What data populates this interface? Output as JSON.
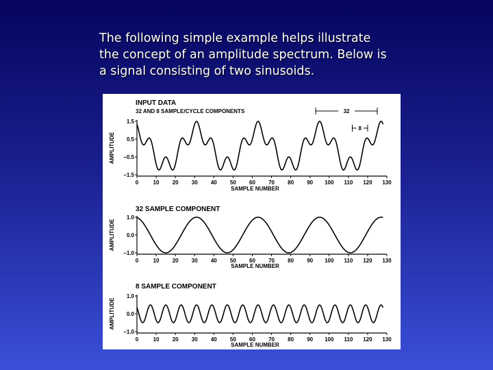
{
  "slide": {
    "caption_lines": [
      "The following simple example helps illustrate",
      "the concept of an amplitude spectrum. Below is",
      "a signal consisting of two sinusoids."
    ]
  },
  "chart_data": [
    {
      "type": "line",
      "title": "INPUT DATA",
      "subtitle": "32 AND 8 SAMPLE/CYCLE COMPONENTS",
      "xlabel": "SAMPLE NUMBER",
      "ylabel": "AMPLITUDE",
      "xlim": [
        0,
        130
      ],
      "ylim": [
        -1.5,
        1.5
      ],
      "x_ticks": [
        "0",
        "10",
        "20",
        "30",
        "40",
        "50",
        "60",
        "70",
        "80",
        "90",
        "100",
        "110",
        "120",
        "130"
      ],
      "y_ticks": [
        "1.5",
        "0.5",
        "−0.5",
        "−1.5"
      ],
      "y_tick_values": [
        1.5,
        0.5,
        -0.5,
        -1.5
      ],
      "series": [
        {
          "components": [
            {
              "period": 32,
              "amplitude": 1.0,
              "phase_peak": 31
            },
            {
              "period": 8,
              "amplitude": 0.5,
              "phase_peak": 31
            }
          ],
          "x_range": [
            0,
            128
          ]
        }
      ],
      "annotations": [
        {
          "label": "32",
          "from": 93,
          "to": 125
        },
        {
          "label": "8",
          "from": 112,
          "to": 120
        }
      ]
    },
    {
      "type": "line",
      "title": "32 SAMPLE COMPONENT",
      "xlabel": "SAMPLE NUMBER",
      "ylabel": "AMPLITUDE",
      "xlim": [
        0,
        130
      ],
      "ylim": [
        -1.0,
        1.0
      ],
      "x_ticks": [
        "0",
        "10",
        "20",
        "30",
        "40",
        "50",
        "60",
        "70",
        "80",
        "90",
        "100",
        "110",
        "120",
        "130"
      ],
      "y_ticks": [
        "1.0",
        "0.0",
        "−1.0"
      ],
      "y_tick_values": [
        1.0,
        0.0,
        -1.0
      ],
      "series": [
        {
          "components": [
            {
              "period": 32,
              "amplitude": 1.0,
              "phase_peak": 31
            }
          ],
          "x_range": [
            0,
            128
          ]
        }
      ]
    },
    {
      "type": "line",
      "title": "8 SAMPLE COMPONENT",
      "xlabel": "SAMPLE NUMBER",
      "ylabel": "AMPLITUDE",
      "xlim": [
        0,
        130
      ],
      "ylim": [
        -1.0,
        1.0
      ],
      "x_ticks": [
        "0",
        "10",
        "20",
        "30",
        "40",
        "50",
        "60",
        "70",
        "80",
        "90",
        "100",
        "110",
        "120",
        "130"
      ],
      "y_ticks": [
        "1.0",
        "0.0",
        "−1.0"
      ],
      "y_tick_values": [
        1.0,
        0.0,
        -1.0
      ],
      "series": [
        {
          "components": [
            {
              "period": 8,
              "amplitude": 0.5,
              "phase_peak": 31
            }
          ],
          "x_range": [
            0,
            128
          ]
        }
      ]
    }
  ]
}
